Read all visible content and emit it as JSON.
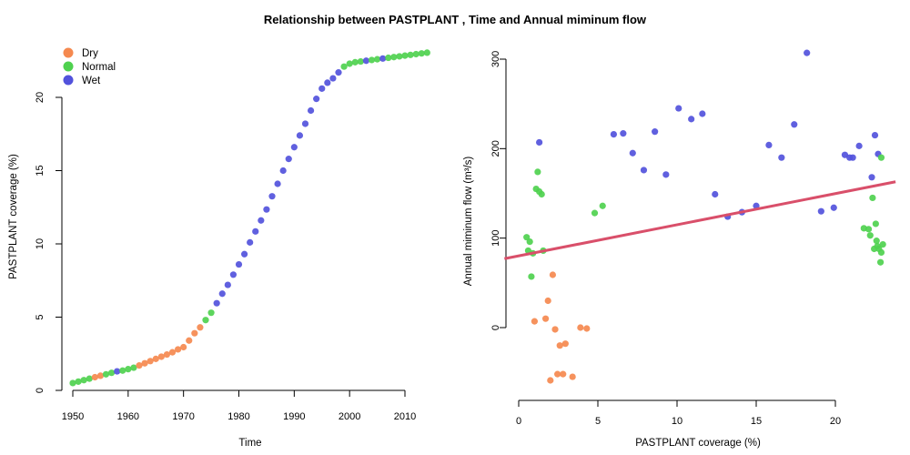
{
  "title": "Relationship between PASTPLANT , Time and Annual miminum flow",
  "colors": {
    "Dry": "#f5894f",
    "Normal": "#4fd14f",
    "Wet": "#5252dc",
    "fit": "#d94f6a"
  },
  "legend": [
    "Dry",
    "Normal",
    "Wet"
  ],
  "chart_data": [
    {
      "type": "scatter",
      "xlabel": "Time",
      "ylabel": "PASTPLANT coverage (%)",
      "xlim": [
        1948,
        2015
      ],
      "ylim": [
        0,
        23.5
      ],
      "xticks": [
        1950,
        1960,
        1970,
        1980,
        1990,
        2000,
        2010
      ],
      "yticks": [
        0,
        5,
        10,
        15,
        20
      ],
      "legend_position": "top-left",
      "points": [
        {
          "x": 1950,
          "y": 0.5,
          "c": "Normal"
        },
        {
          "x": 1951,
          "y": 0.6,
          "c": "Normal"
        },
        {
          "x": 1952,
          "y": 0.7,
          "c": "Normal"
        },
        {
          "x": 1953,
          "y": 0.8,
          "c": "Normal"
        },
        {
          "x": 1954,
          "y": 0.9,
          "c": "Dry"
        },
        {
          "x": 1955,
          "y": 1.0,
          "c": "Dry"
        },
        {
          "x": 1956,
          "y": 1.1,
          "c": "Normal"
        },
        {
          "x": 1957,
          "y": 1.2,
          "c": "Normal"
        },
        {
          "x": 1958,
          "y": 1.3,
          "c": "Wet"
        },
        {
          "x": 1959,
          "y": 1.35,
          "c": "Normal"
        },
        {
          "x": 1960,
          "y": 1.45,
          "c": "Normal"
        },
        {
          "x": 1961,
          "y": 1.55,
          "c": "Normal"
        },
        {
          "x": 1962,
          "y": 1.7,
          "c": "Dry"
        },
        {
          "x": 1963,
          "y": 1.85,
          "c": "Dry"
        },
        {
          "x": 1964,
          "y": 2.0,
          "c": "Dry"
        },
        {
          "x": 1965,
          "y": 2.15,
          "c": "Dry"
        },
        {
          "x": 1966,
          "y": 2.3,
          "c": "Dry"
        },
        {
          "x": 1967,
          "y": 2.45,
          "c": "Dry"
        },
        {
          "x": 1968,
          "y": 2.6,
          "c": "Dry"
        },
        {
          "x": 1969,
          "y": 2.8,
          "c": "Dry"
        },
        {
          "x": 1970,
          "y": 2.95,
          "c": "Dry"
        },
        {
          "x": 1971,
          "y": 3.4,
          "c": "Dry"
        },
        {
          "x": 1972,
          "y": 3.9,
          "c": "Dry"
        },
        {
          "x": 1973,
          "y": 4.3,
          "c": "Dry"
        },
        {
          "x": 1974,
          "y": 4.8,
          "c": "Normal"
        },
        {
          "x": 1975,
          "y": 5.3,
          "c": "Normal"
        },
        {
          "x": 1976,
          "y": 5.95,
          "c": "Wet"
        },
        {
          "x": 1977,
          "y": 6.6,
          "c": "Wet"
        },
        {
          "x": 1978,
          "y": 7.2,
          "c": "Wet"
        },
        {
          "x": 1979,
          "y": 7.9,
          "c": "Wet"
        },
        {
          "x": 1980,
          "y": 8.6,
          "c": "Wet"
        },
        {
          "x": 1981,
          "y": 9.3,
          "c": "Wet"
        },
        {
          "x": 1982,
          "y": 10.1,
          "c": "Wet"
        },
        {
          "x": 1983,
          "y": 10.85,
          "c": "Wet"
        },
        {
          "x": 1984,
          "y": 11.6,
          "c": "Wet"
        },
        {
          "x": 1985,
          "y": 12.35,
          "c": "Wet"
        },
        {
          "x": 1986,
          "y": 13.25,
          "c": "Wet"
        },
        {
          "x": 1987,
          "y": 14.1,
          "c": "Wet"
        },
        {
          "x": 1988,
          "y": 15.0,
          "c": "Wet"
        },
        {
          "x": 1989,
          "y": 15.8,
          "c": "Wet"
        },
        {
          "x": 1990,
          "y": 16.6,
          "c": "Wet"
        },
        {
          "x": 1991,
          "y": 17.4,
          "c": "Wet"
        },
        {
          "x": 1992,
          "y": 18.2,
          "c": "Wet"
        },
        {
          "x": 1993,
          "y": 19.1,
          "c": "Wet"
        },
        {
          "x": 1994,
          "y": 19.9,
          "c": "Wet"
        },
        {
          "x": 1995,
          "y": 20.6,
          "c": "Wet"
        },
        {
          "x": 1996,
          "y": 21.0,
          "c": "Wet"
        },
        {
          "x": 1997,
          "y": 21.3,
          "c": "Wet"
        },
        {
          "x": 1998,
          "y": 21.7,
          "c": "Wet"
        },
        {
          "x": 1999,
          "y": 22.1,
          "c": "Normal"
        },
        {
          "x": 2000,
          "y": 22.3,
          "c": "Normal"
        },
        {
          "x": 2001,
          "y": 22.4,
          "c": "Normal"
        },
        {
          "x": 2002,
          "y": 22.45,
          "c": "Normal"
        },
        {
          "x": 2003,
          "y": 22.5,
          "c": "Wet"
        },
        {
          "x": 2004,
          "y": 22.55,
          "c": "Normal"
        },
        {
          "x": 2005,
          "y": 22.6,
          "c": "Normal"
        },
        {
          "x": 2006,
          "y": 22.65,
          "c": "Wet"
        },
        {
          "x": 2007,
          "y": 22.7,
          "c": "Normal"
        },
        {
          "x": 2008,
          "y": 22.75,
          "c": "Normal"
        },
        {
          "x": 2009,
          "y": 22.8,
          "c": "Normal"
        },
        {
          "x": 2010,
          "y": 22.85,
          "c": "Normal"
        },
        {
          "x": 2011,
          "y": 22.9,
          "c": "Normal"
        },
        {
          "x": 2012,
          "y": 22.95,
          "c": "Normal"
        },
        {
          "x": 2013,
          "y": 23.0,
          "c": "Normal"
        },
        {
          "x": 2014,
          "y": 23.05,
          "c": "Normal"
        }
      ]
    },
    {
      "type": "scatter",
      "xlabel": "PASTPLANT coverage (%)",
      "ylabel": "Annual miminum flow (m³/s)",
      "xlim": [
        -0.9,
        23.8
      ],
      "ylim": [
        -79,
        315
      ],
      "xticks": [
        0,
        5,
        10,
        15,
        20
      ],
      "yticks": [
        0,
        100,
        200,
        300
      ],
      "regression_line": {
        "x": [
          -0.9,
          23.8
        ],
        "y": [
          77,
          163
        ]
      },
      "points": [
        {
          "x": 0.5,
          "y": 101,
          "c": "Normal"
        },
        {
          "x": 0.6,
          "y": 86,
          "c": "Normal"
        },
        {
          "x": 0.7,
          "y": 96,
          "c": "Normal"
        },
        {
          "x": 0.8,
          "y": 57,
          "c": "Normal"
        },
        {
          "x": 0.9,
          "y": 83,
          "c": "Normal"
        },
        {
          "x": 1.1,
          "y": 155,
          "c": "Normal"
        },
        {
          "x": 1.2,
          "y": 174,
          "c": "Normal"
        },
        {
          "x": 1.3,
          "y": 152,
          "c": "Normal"
        },
        {
          "x": 1.45,
          "y": 149,
          "c": "Normal"
        },
        {
          "x": 1.55,
          "y": 86,
          "c": "Normal"
        },
        {
          "x": 4.8,
          "y": 128,
          "c": "Normal"
        },
        {
          "x": 5.3,
          "y": 136,
          "c": "Normal"
        },
        {
          "x": 1.0,
          "y": 7,
          "c": "Dry"
        },
        {
          "x": 1.7,
          "y": 10,
          "c": "Dry"
        },
        {
          "x": 1.85,
          "y": 30,
          "c": "Dry"
        },
        {
          "x": 2.0,
          "y": -59,
          "c": "Dry"
        },
        {
          "x": 2.15,
          "y": 59,
          "c": "Dry"
        },
        {
          "x": 2.3,
          "y": -2,
          "c": "Dry"
        },
        {
          "x": 2.45,
          "y": -52,
          "c": "Dry"
        },
        {
          "x": 2.6,
          "y": -20,
          "c": "Dry"
        },
        {
          "x": 2.8,
          "y": -52,
          "c": "Dry"
        },
        {
          "x": 2.95,
          "y": -18,
          "c": "Dry"
        },
        {
          "x": 3.4,
          "y": -55,
          "c": "Dry"
        },
        {
          "x": 3.9,
          "y": 0,
          "c": "Dry"
        },
        {
          "x": 4.3,
          "y": -1,
          "c": "Dry"
        },
        {
          "x": 1.3,
          "y": 207,
          "c": "Wet"
        },
        {
          "x": 6.0,
          "y": 216,
          "c": "Wet"
        },
        {
          "x": 6.6,
          "y": 217,
          "c": "Wet"
        },
        {
          "x": 7.2,
          "y": 195,
          "c": "Wet"
        },
        {
          "x": 7.9,
          "y": 176,
          "c": "Wet"
        },
        {
          "x": 8.6,
          "y": 219,
          "c": "Wet"
        },
        {
          "x": 9.3,
          "y": 171,
          "c": "Wet"
        },
        {
          "x": 10.1,
          "y": 245,
          "c": "Wet"
        },
        {
          "x": 10.9,
          "y": 233,
          "c": "Wet"
        },
        {
          "x": 11.6,
          "y": 239,
          "c": "Wet"
        },
        {
          "x": 12.4,
          "y": 149,
          "c": "Wet"
        },
        {
          "x": 13.2,
          "y": 124,
          "c": "Wet"
        },
        {
          "x": 14.1,
          "y": 129,
          "c": "Wet"
        },
        {
          "x": 15.0,
          "y": 136,
          "c": "Wet"
        },
        {
          "x": 15.8,
          "y": 204,
          "c": "Wet"
        },
        {
          "x": 16.6,
          "y": 190,
          "c": "Wet"
        },
        {
          "x": 17.4,
          "y": 227,
          "c": "Wet"
        },
        {
          "x": 18.2,
          "y": 307,
          "c": "Wet"
        },
        {
          "x": 19.1,
          "y": 130,
          "c": "Wet"
        },
        {
          "x": 19.9,
          "y": 134,
          "c": "Wet"
        },
        {
          "x": 20.6,
          "y": 193,
          "c": "Wet"
        },
        {
          "x": 20.9,
          "y": 190,
          "c": "Wet"
        },
        {
          "x": 21.1,
          "y": 190,
          "c": "Wet"
        },
        {
          "x": 21.5,
          "y": 203,
          "c": "Wet"
        },
        {
          "x": 22.3,
          "y": 168,
          "c": "Wet"
        },
        {
          "x": 22.5,
          "y": 215,
          "c": "Wet"
        },
        {
          "x": 22.7,
          "y": 194,
          "c": "Wet"
        },
        {
          "x": 22.9,
          "y": 190,
          "c": "Normal"
        },
        {
          "x": 21.8,
          "y": 111,
          "c": "Normal"
        },
        {
          "x": 22.1,
          "y": 110,
          "c": "Normal"
        },
        {
          "x": 22.2,
          "y": 103,
          "c": "Normal"
        },
        {
          "x": 22.35,
          "y": 145,
          "c": "Normal"
        },
        {
          "x": 22.45,
          "y": 88,
          "c": "Normal"
        },
        {
          "x": 22.55,
          "y": 116,
          "c": "Normal"
        },
        {
          "x": 22.6,
          "y": 97,
          "c": "Normal"
        },
        {
          "x": 22.65,
          "y": 91,
          "c": "Normal"
        },
        {
          "x": 22.75,
          "y": 88,
          "c": "Normal"
        },
        {
          "x": 22.85,
          "y": 73,
          "c": "Normal"
        },
        {
          "x": 22.9,
          "y": 84,
          "c": "Normal"
        },
        {
          "x": 23.0,
          "y": 93,
          "c": "Normal"
        }
      ]
    }
  ]
}
